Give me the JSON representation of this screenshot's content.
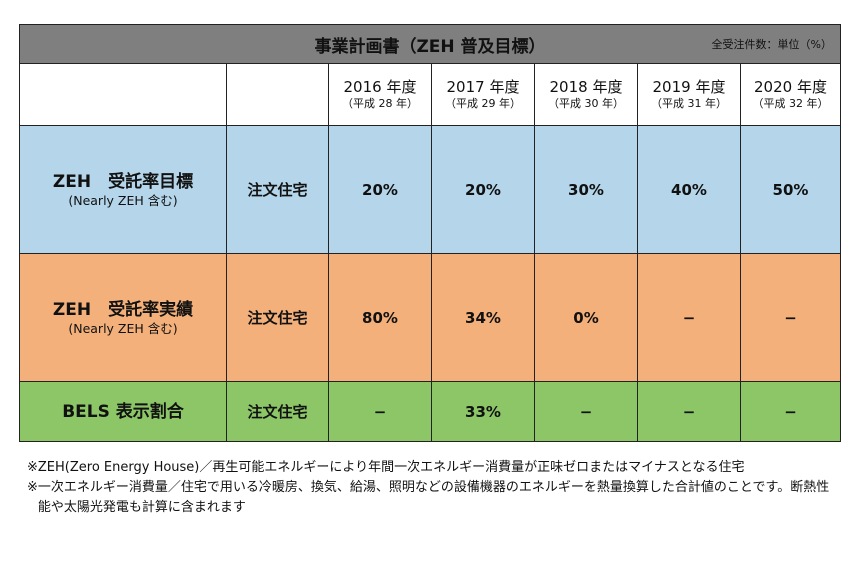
{
  "table": {
    "title": "事業計画書（ZEH 普及目標）",
    "unit": "全受注件数：単位（%）",
    "years": [
      {
        "year": "2016 年度",
        "era": "（平成 28 年）"
      },
      {
        "year": "2017 年度",
        "era": "（平成 29 年）"
      },
      {
        "year": "2018 年度",
        "era": "（平成 30 年）"
      },
      {
        "year": "2019 年度",
        "era": "（平成 31 年）"
      },
      {
        "year": "2020 年度",
        "era": "（平成 32 年）"
      }
    ],
    "rows": [
      {
        "label": "ZEH　受託率目標",
        "sub": "(Nearly ZEH 含む)",
        "type": "注文住宅",
        "values": [
          "20%",
          "20%",
          "30%",
          "40%",
          "50%"
        ],
        "color": "#b4d5ea"
      },
      {
        "label": "ZEH　受託率実績",
        "sub": "(Nearly ZEH 含む)",
        "type": "注文住宅",
        "values": [
          "80%",
          "34%",
          "0%",
          "−",
          "−"
        ],
        "color": "#f4b07a"
      },
      {
        "label": "BELS 表示割合",
        "sub": "",
        "type": "注文住宅",
        "values": [
          "−",
          "33%",
          "−",
          "−",
          "−"
        ],
        "color": "#8cc667"
      }
    ]
  },
  "notes": [
    {
      "mark": "※",
      "text": "ZEH(Zero Energy House)／再生可能エネルギーにより年間一次エネルギー消費量が正味ゼロまたはマイナスとなる住宅"
    },
    {
      "mark": "※",
      "text": "一次エネルギー消費量／住宅で用いる冷暖房、換気、給湯、照明などの設備機器のエネルギーを熱量換算した合計値のことです。断熱性能や太陽光発電も計算に含まれます"
    }
  ]
}
